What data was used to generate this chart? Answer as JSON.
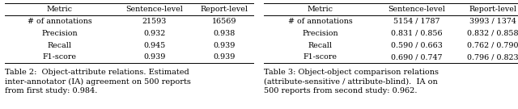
{
  "table2": {
    "headers": [
      "Metric",
      "Sentence-level",
      "Report-level"
    ],
    "rows": [
      [
        "# of annotations",
        "21593",
        "16569"
      ],
      [
        "Precision",
        "0.932",
        "0.938"
      ],
      [
        "Recall",
        "0.945",
        "0.939"
      ],
      [
        "F1-score",
        "0.939",
        "0.939"
      ]
    ],
    "caption": "Table 2:  Object-attribute relations. Estimated\ninter-annotator (IA) agreement on 500 reports\nfrom first study: 0.984."
  },
  "table3": {
    "headers": [
      "Metric",
      "Sentence-level",
      "Report-level"
    ],
    "rows": [
      [
        "# of annotations",
        "5154 / 1787",
        "3993 / 1374"
      ],
      [
        "Precision",
        "0.831 / 0.856",
        "0.832 / 0.858"
      ],
      [
        "Recall",
        "0.590 / 0.663",
        "0.762 / 0.790"
      ],
      [
        "F1-score",
        "0.690 / 0.747",
        "0.796 / 0.823"
      ]
    ],
    "caption": "Table 3: Object-object comparison relations\n(attribute-sensitive / attribute-blind).  IA on\n500 reports from second study: 0.962."
  },
  "bg_color": "#ffffff",
  "text_color": "#000000",
  "header_fontsize": 6.8,
  "cell_fontsize": 6.8,
  "caption_fontsize": 7.0
}
